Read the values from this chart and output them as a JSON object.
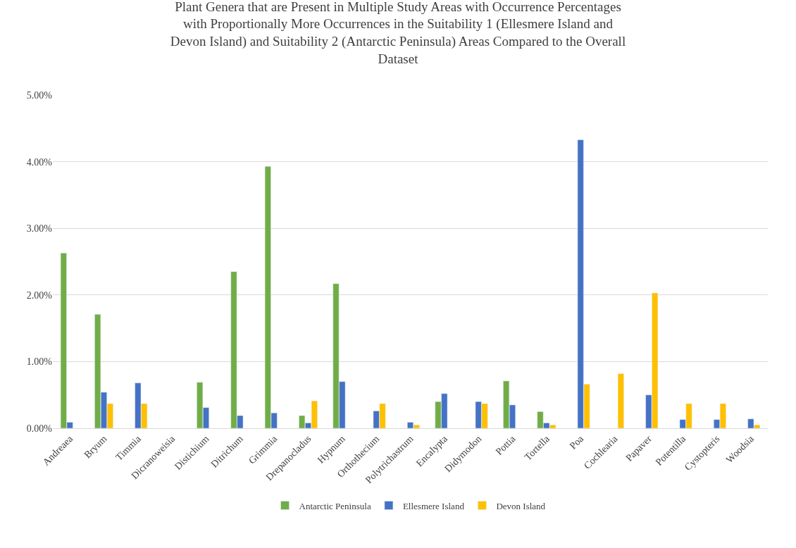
{
  "chart_data": {
    "type": "bar",
    "title": "Plant Genera that are Present in Multiple Study Areas with Occurrence Percentages with Proportionally More Occurrences in the Suitability 1 (Ellesmere Island and Devon Island) and Suitability 2 (Antarctic Peninsula) Areas Compared to the Overall Dataset",
    "categories": [
      "Andreaea",
      "Bryum",
      "Timmia",
      "Dicranoweisia",
      "Distichium",
      "Ditrichum",
      "Grimmia",
      "Drepanocladus",
      "Hypnum",
      "Orthothecium",
      "Polytrichastrum",
      "Encalypta",
      "Didymodon",
      "Pottia",
      "Tortella",
      "Poa",
      "Cochlearia",
      "Papaver",
      "Potentilla",
      "Cystopteris",
      "Woodsia"
    ],
    "series": [
      {
        "name": "Antarctic Peninsula",
        "color": "#70ad47",
        "values": [
          2.63,
          1.71,
          null,
          null,
          0.69,
          2.35,
          3.93,
          0.19,
          2.17,
          null,
          null,
          0.4,
          null,
          0.71,
          0.25,
          null,
          null,
          null,
          null,
          null,
          null
        ]
      },
      {
        "name": "Ellesmere Island",
        "color": "#4472c4",
        "values": [
          0.09,
          0.54,
          0.68,
          null,
          0.31,
          0.19,
          0.23,
          0.08,
          0.7,
          0.26,
          0.09,
          0.52,
          0.4,
          0.35,
          0.08,
          4.33,
          null,
          0.5,
          0.13,
          0.13,
          0.14
        ]
      },
      {
        "name": "Devon Island",
        "color": "#ffc000",
        "values": [
          null,
          0.37,
          0.37,
          null,
          null,
          null,
          null,
          0.41,
          null,
          0.37,
          0.05,
          null,
          0.37,
          null,
          0.05,
          0.66,
          0.82,
          2.03,
          0.37,
          0.37,
          0.05
        ]
      }
    ],
    "ylim": [
      0,
      5
    ],
    "yticks": [
      {
        "value": 0,
        "label": "0.00%"
      },
      {
        "value": 1,
        "label": "1.00%"
      },
      {
        "value": 2,
        "label": "2.00%"
      },
      {
        "value": 3,
        "label": "3.00%"
      },
      {
        "value": 4,
        "label": "4.00%"
      },
      {
        "value": 5,
        "label": "5.00%"
      }
    ],
    "grid": "y",
    "legend": "bottom"
  }
}
